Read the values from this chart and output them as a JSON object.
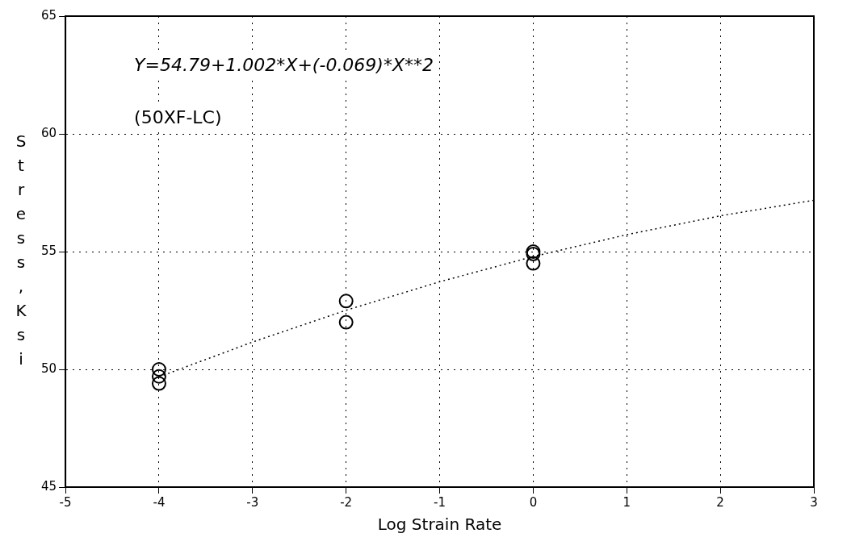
{
  "chart_data": {
    "type": "scatter",
    "xlabel": "Log Strain Rate",
    "ylabel": "Stress, Ksi",
    "annotations": [
      "Y=54.79+1.002*X+(-0.069)*X**2",
      "(50XF-LC)"
    ],
    "series": [
      {
        "type": "scatter",
        "color": "#000000",
        "marker": "circle",
        "x": [
          -4,
          -4,
          -4,
          -2,
          -2,
          0,
          0,
          0
        ],
        "values": [
          50.0,
          49.7,
          49.4,
          52.9,
          52.0,
          55.0,
          54.9,
          54.5
        ]
      },
      {
        "type": "line",
        "color": "#000000",
        "line_style": "dotted",
        "marker": "none",
        "x": [
          -4,
          -3,
          -2,
          -1,
          0,
          1,
          2,
          3
        ],
        "values": [
          49.68,
          51.16,
          52.51,
          53.72,
          54.79,
          55.72,
          56.52,
          57.18
        ]
      }
    ],
    "xlim": [
      -5,
      3
    ],
    "xticks": [
      -5,
      -4,
      -3,
      -2,
      -1,
      0,
      1,
      2,
      3
    ],
    "ylim": [
      45,
      65
    ],
    "yticks": [
      45,
      50,
      55,
      60,
      65
    ],
    "grid": true,
    "legend": false
  }
}
